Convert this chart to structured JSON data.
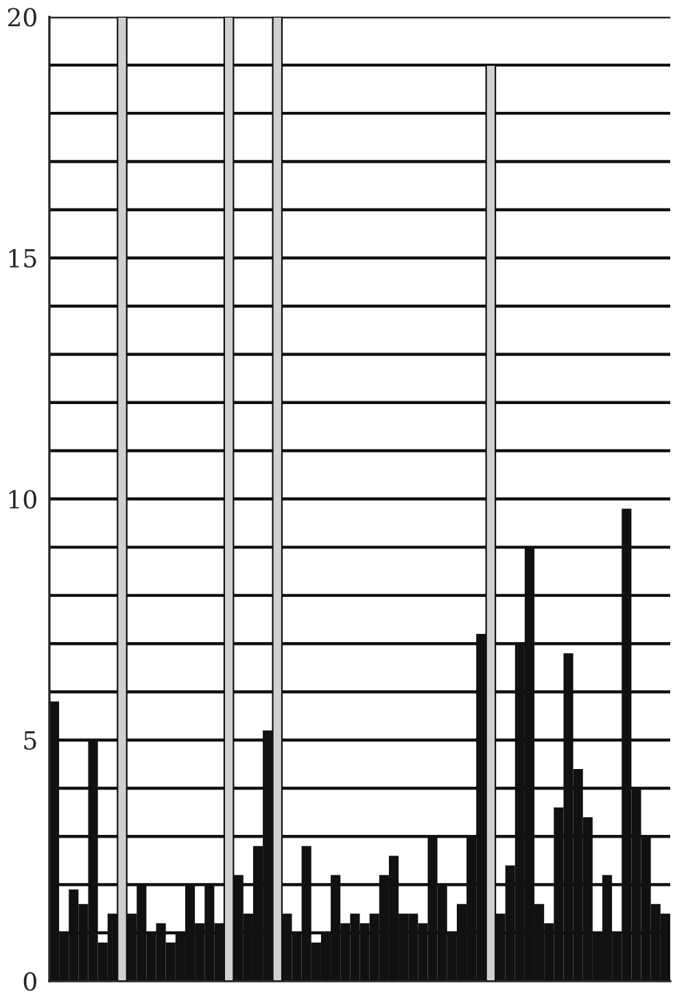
{
  "chart_data": {
    "type": "bar",
    "categories": [
      null,
      null,
      null,
      null,
      null,
      null,
      null,
      null,
      null,
      null,
      null,
      null,
      null,
      null,
      null,
      null,
      null,
      null,
      null,
      null,
      null,
      null,
      null,
      null,
      null,
      null,
      null,
      null,
      null,
      null,
      null,
      null,
      null,
      null,
      null,
      null,
      null,
      null,
      null,
      null,
      null,
      null,
      null,
      null,
      null,
      null,
      null,
      null,
      null,
      null,
      null,
      null,
      null,
      null,
      null,
      null,
      null,
      null,
      null,
      null,
      null,
      null,
      null,
      null
    ],
    "values": [
      5.8,
      1.0,
      1.9,
      1.6,
      5.0,
      0.8,
      1.4,
      20,
      1.4,
      2.0,
      1.0,
      1.2,
      0.8,
      1.0,
      2.0,
      1.2,
      2.0,
      1.2,
      20,
      2.2,
      1.4,
      2.8,
      5.2,
      20,
      1.4,
      1.0,
      2.8,
      0.8,
      1.0,
      2.2,
      1.2,
      1.4,
      1.2,
      1.4,
      2.2,
      2.6,
      1.4,
      1.4,
      1.2,
      3.0,
      2.0,
      1.0,
      1.6,
      3.0,
      7.2,
      19,
      1.4,
      2.4,
      7.0,
      9.0,
      1.6,
      1.2,
      3.6,
      6.8,
      4.4,
      3.4,
      1.0,
      2.2,
      1.0,
      9.8,
      4.0,
      3.0,
      1.6,
      1.4
    ],
    "colors": [
      "#111111",
      "#111111",
      "#111111",
      "#111111",
      "#111111",
      "#111111",
      "#111111",
      "#d0d0d0",
      "#111111",
      "#111111",
      "#111111",
      "#111111",
      "#111111",
      "#111111",
      "#111111",
      "#111111",
      "#111111",
      "#111111",
      "#d0d0d0",
      "#111111",
      "#111111",
      "#111111",
      "#111111",
      "#d0d0d0",
      "#111111",
      "#111111",
      "#111111",
      "#111111",
      "#111111",
      "#111111",
      "#111111",
      "#111111",
      "#111111",
      "#111111",
      "#111111",
      "#111111",
      "#111111",
      "#111111",
      "#111111",
      "#111111",
      "#111111",
      "#111111",
      "#111111",
      "#111111",
      "#111111",
      "#d0d0d0",
      "#111111",
      "#111111",
      "#111111",
      "#111111",
      "#111111",
      "#111111",
      "#111111",
      "#111111",
      "#111111",
      "#111111",
      "#111111",
      "#111111",
      "#111111",
      "#111111",
      "#111111",
      "#111111",
      "#111111",
      "#111111"
    ],
    "ylim": [
      0,
      20
    ],
    "yticks": [
      0,
      {
        "value": 1,
        "label": null
      },
      {
        "value": 2,
        "label": null
      },
      {
        "value": 3,
        "label": null
      },
      {
        "value": 4,
        "label": null
      },
      5,
      {
        "value": 6,
        "label": null
      },
      {
        "value": 7,
        "label": null
      },
      {
        "value": 8,
        "label": null
      },
      {
        "value": 9,
        "label": null
      },
      10,
      {
        "value": 11,
        "label": null
      },
      {
        "value": 12,
        "label": null
      },
      {
        "value": 13,
        "label": null
      },
      {
        "value": 14,
        "label": null
      },
      15,
      {
        "value": 16,
        "label": null
      },
      {
        "value": 17,
        "label": null
      },
      {
        "value": 18,
        "label": null
      },
      {
        "value": 19,
        "label": null
      },
      20
    ],
    "grid": "y",
    "tick_labels": "y"
  }
}
